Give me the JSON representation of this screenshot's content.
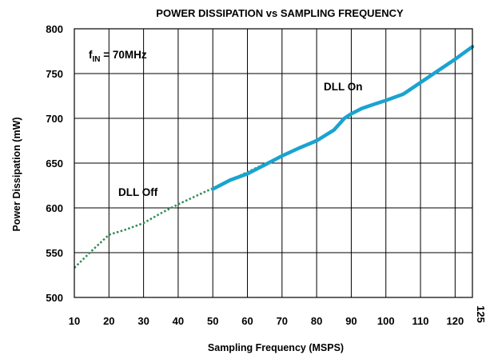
{
  "chart_data": {
    "type": "line",
    "title": "POWER DISSIPATION vs SAMPLING FREQUENCY",
    "xlabel": "Sampling Frequency (MSPS)",
    "ylabel": "Power Dissipation (mW)",
    "xlim": [
      10,
      125
    ],
    "ylim": [
      500,
      800
    ],
    "x_ticks": [
      10,
      20,
      30,
      40,
      50,
      60,
      70,
      80,
      90,
      100,
      110,
      120,
      125
    ],
    "y_ticks": [
      500,
      550,
      600,
      650,
      700,
      750,
      800
    ],
    "grid": true,
    "legend": "none",
    "annotations": {
      "fin_main": "f",
      "fin_sub": "IN",
      "fin_value": " = 70MHz",
      "dll_on": "DLL On",
      "dll_off": "DLL Off"
    },
    "series": [
      {
        "name": "DLL Off",
        "color": "#2e8b57",
        "style": "dotted",
        "points": [
          [
            10,
            533
          ],
          [
            15,
            552
          ],
          [
            20,
            570
          ],
          [
            25,
            576
          ],
          [
            30,
            583
          ],
          [
            35,
            594
          ],
          [
            40,
            604
          ],
          [
            45,
            613
          ],
          [
            50,
            622
          ],
          [
            55,
            631
          ],
          [
            60,
            640
          ],
          [
            65,
            649
          ],
          [
            70,
            658
          ],
          [
            75,
            667
          ],
          [
            80,
            676
          ]
        ]
      },
      {
        "name": "DLL On",
        "color": "#1aa3d0",
        "style": "solid",
        "points": [
          [
            50,
            621
          ],
          [
            55,
            631
          ],
          [
            60,
            638
          ],
          [
            65,
            648
          ],
          [
            70,
            658
          ],
          [
            75,
            667
          ],
          [
            80,
            675
          ],
          [
            85,
            687
          ],
          [
            88,
            700
          ],
          [
            90,
            705
          ],
          [
            93,
            711
          ],
          [
            96,
            715
          ],
          [
            100,
            720
          ],
          [
            105,
            727
          ],
          [
            110,
            740
          ],
          [
            115,
            753
          ],
          [
            120,
            766
          ],
          [
            125,
            780
          ]
        ]
      }
    ]
  }
}
